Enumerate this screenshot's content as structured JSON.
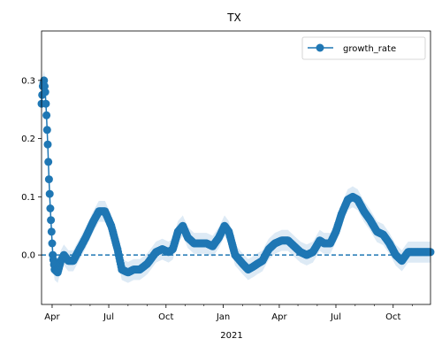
{
  "chart_data": {
    "type": "line",
    "title": "TX",
    "xlabel": "2021",
    "ylabel": "",
    "ylim": [
      -0.085,
      0.385
    ],
    "xlim": [
      "2020-03-15",
      "2021-11-30"
    ],
    "grid": false,
    "legend": "top-right",
    "y_ticks": [
      0.0,
      0.1,
      0.2,
      0.3
    ],
    "y_tick_labels": [
      "0.0",
      "0.1",
      "0.2",
      "0.3"
    ],
    "x_ticks": [
      {
        "date": "2020-04-01",
        "label": "Apr"
      },
      {
        "date": "2020-07-01",
        "label": "Jul"
      },
      {
        "date": "2020-10-01",
        "label": "Oct"
      },
      {
        "date": "2021-01-01",
        "label": "Jan"
      },
      {
        "date": "2021-04-01",
        "label": "Apr"
      },
      {
        "date": "2021-07-01",
        "label": "Jul"
      },
      {
        "date": "2021-10-01",
        "label": "Oct"
      }
    ],
    "reference_line": {
      "y": 0.0,
      "style": "dashed"
    },
    "series": [
      {
        "name": "growth_rate",
        "color": "#1f77b4",
        "band_color": "#c6dcef",
        "band_halfwidth": 0.018,
        "points": [
          [
            "2020-03-15",
            0.26
          ],
          [
            "2020-03-17",
            0.29
          ],
          [
            "2020-03-19",
            0.3
          ],
          [
            "2020-03-21",
            0.28
          ],
          [
            "2020-03-23",
            0.24
          ],
          [
            "2020-03-25",
            0.19
          ],
          [
            "2020-03-27",
            0.13
          ],
          [
            "2020-03-29",
            0.08
          ],
          [
            "2020-03-31",
            0.04
          ],
          [
            "2020-04-02",
            0.0
          ],
          [
            "2020-04-05",
            -0.025
          ],
          [
            "2020-04-10",
            -0.03
          ],
          [
            "2020-04-15",
            -0.01
          ],
          [
            "2020-04-20",
            0.0
          ],
          [
            "2020-04-27",
            -0.01
          ],
          [
            "2020-05-05",
            -0.01
          ],
          [
            "2020-05-15",
            0.01
          ],
          [
            "2020-05-25",
            0.03
          ],
          [
            "2020-06-05",
            0.055
          ],
          [
            "2020-06-15",
            0.075
          ],
          [
            "2020-06-25",
            0.075
          ],
          [
            "2020-07-05",
            0.05
          ],
          [
            "2020-07-15",
            0.01
          ],
          [
            "2020-07-22",
            -0.025
          ],
          [
            "2020-08-01",
            -0.03
          ],
          [
            "2020-08-10",
            -0.025
          ],
          [
            "2020-08-20",
            -0.025
          ],
          [
            "2020-09-01",
            -0.015
          ],
          [
            "2020-09-15",
            0.005
          ],
          [
            "2020-09-25",
            0.01
          ],
          [
            "2020-10-05",
            0.005
          ],
          [
            "2020-10-12",
            0.01
          ],
          [
            "2020-10-20",
            0.04
          ],
          [
            "2020-10-28",
            0.05
          ],
          [
            "2020-11-05",
            0.03
          ],
          [
            "2020-11-15",
            0.02
          ],
          [
            "2020-11-25",
            0.02
          ],
          [
            "2020-12-05",
            0.02
          ],
          [
            "2020-12-15",
            0.015
          ],
          [
            "2020-12-25",
            0.03
          ],
          [
            "2021-01-03",
            0.05
          ],
          [
            "2021-01-10",
            0.04
          ],
          [
            "2021-01-20",
            0.0
          ],
          [
            "2021-02-01",
            -0.015
          ],
          [
            "2021-02-10",
            -0.025
          ],
          [
            "2021-02-18",
            -0.02
          ],
          [
            "2021-02-25",
            -0.015
          ],
          [
            "2021-03-05",
            -0.01
          ],
          [
            "2021-03-15",
            0.01
          ],
          [
            "2021-03-25",
            0.02
          ],
          [
            "2021-04-05",
            0.025
          ],
          [
            "2021-04-15",
            0.025
          ],
          [
            "2021-04-25",
            0.015
          ],
          [
            "2021-05-05",
            0.005
          ],
          [
            "2021-05-15",
            0.0
          ],
          [
            "2021-05-25",
            0.005
          ],
          [
            "2021-06-05",
            0.025
          ],
          [
            "2021-06-12",
            0.02
          ],
          [
            "2021-06-22",
            0.02
          ],
          [
            "2021-07-01",
            0.04
          ],
          [
            "2021-07-10",
            0.07
          ],
          [
            "2021-07-20",
            0.095
          ],
          [
            "2021-07-28",
            0.1
          ],
          [
            "2021-08-05",
            0.095
          ],
          [
            "2021-08-15",
            0.075
          ],
          [
            "2021-08-25",
            0.06
          ],
          [
            "2021-09-05",
            0.04
          ],
          [
            "2021-09-15",
            0.035
          ],
          [
            "2021-09-25",
            0.02
          ],
          [
            "2021-10-05",
            0.0
          ],
          [
            "2021-10-15",
            -0.01
          ],
          [
            "2021-10-25",
            0.005
          ],
          [
            "2021-11-05",
            0.005
          ],
          [
            "2021-11-15",
            0.005
          ],
          [
            "2021-11-30",
            0.005
          ]
        ]
      }
    ]
  }
}
